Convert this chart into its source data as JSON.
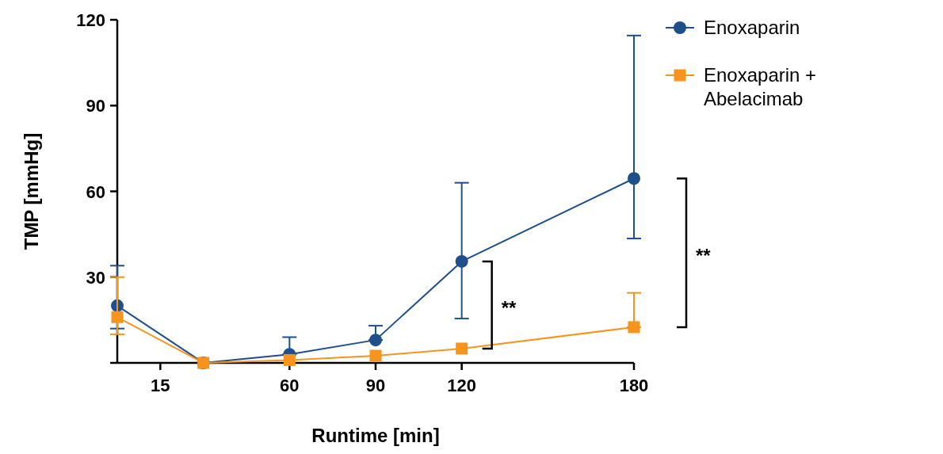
{
  "chart_data": {
    "type": "line",
    "xlabel": "Runtime [min]",
    "ylabel": "TMP [mmHg]",
    "x": [
      0,
      30,
      60,
      90,
      120,
      180
    ],
    "xlim": [
      0,
      180
    ],
    "xticks": [
      15,
      60,
      90,
      120,
      180
    ],
    "ylim": [
      0,
      120
    ],
    "yticks": [
      {
        "value": 0,
        "label": null
      },
      30,
      60,
      90,
      120
    ],
    "legend": "top right",
    "annotations": [
      "**",
      "**"
    ],
    "series": [
      {
        "name": "Enoxaparin",
        "color": "#1f4e8c",
        "marker": "circle",
        "values": [
          20,
          0,
          3,
          8,
          35.5,
          64.5
        ],
        "errors": [
          [
            12,
            34
          ],
          null,
          [
            3,
            9
          ],
          [
            8,
            13
          ],
          [
            15.5,
            63
          ],
          [
            43.5,
            114.5
          ]
        ]
      },
      {
        "name": "Enoxaparin + Abelacimab",
        "color": "#f7941d",
        "marker": "square",
        "values": [
          16,
          0,
          1,
          2.5,
          5,
          12.5
        ],
        "errors": [
          [
            10,
            30
          ],
          null,
          null,
          null,
          null,
          [
            12.5,
            24.5
          ]
        ]
      }
    ]
  }
}
